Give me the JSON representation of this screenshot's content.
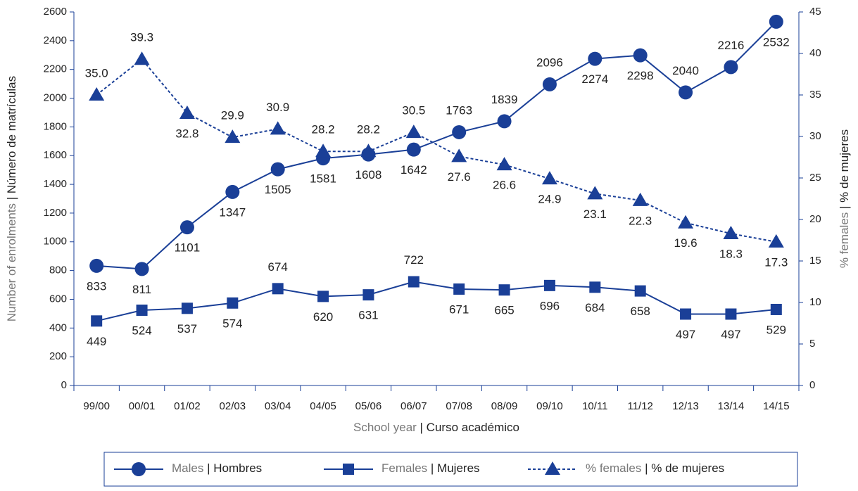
{
  "chart_data": {
    "type": "line",
    "xlabel": "School year | Curso académico",
    "ylabel": "Number of enrolments | Número de matrículas",
    "y2label": "% females | % de mujeres",
    "categories": [
      "99/00",
      "00/01",
      "01/02",
      "02/03",
      "03/04",
      "04/05",
      "05/06",
      "06/07",
      "07/08",
      "08/09",
      "09/10",
      "10/11",
      "11/12",
      "12/13",
      "13/14",
      "14/15"
    ],
    "series": [
      {
        "name": "Males | Hombres",
        "color": "#1a3f97",
        "marker": "circle",
        "dash": false,
        "values": [
          833,
          811,
          1101,
          1347,
          1505,
          1581,
          1608,
          1642,
          1763,
          1839,
          2096,
          2274,
          2298,
          2040,
          2216,
          2532
        ]
      },
      {
        "name": "Females | Mujeres",
        "color": "#1a3f97",
        "marker": "square",
        "dash": false,
        "values": [
          449,
          524,
          537,
          574,
          674,
          620,
          631,
          722,
          671,
          665,
          696,
          684,
          658,
          497,
          497,
          529
        ]
      },
      {
        "name": "% females | % de mujeres",
        "color": "#1a3f97",
        "marker": "triangle",
        "dash": true,
        "axis": "y2",
        "values": [
          35.0,
          39.3,
          32.8,
          29.9,
          30.9,
          28.2,
          28.2,
          30.5,
          27.6,
          26.6,
          24.9,
          23.1,
          22.3,
          19.6,
          18.3,
          17.3
        ],
        "value_labels": [
          "35.0",
          "39.3",
          "32.8",
          "29.9",
          "30.9",
          "28.2",
          "28.2",
          "30.5",
          "27.6",
          "26.6",
          "24.9",
          "23.1",
          "22.3",
          "19.6",
          "18.3",
          "17.3"
        ]
      }
    ],
    "ylim": [
      0,
      2600
    ],
    "yticks": [
      0,
      200,
      400,
      600,
      800,
      1000,
      1200,
      1400,
      1600,
      1800,
      2000,
      2200,
      2400,
      2600
    ],
    "y2lim": [
      0,
      45
    ],
    "y2ticks": [
      0,
      5,
      10,
      15,
      20,
      25,
      30,
      35,
      40,
      45
    ],
    "legend": "bottom"
  }
}
